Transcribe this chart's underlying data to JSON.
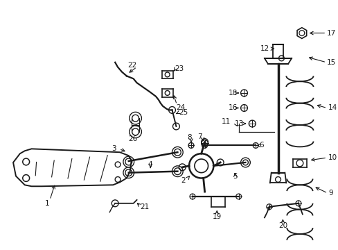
{
  "bg_color": "#ffffff",
  "line_color": "#1a1a1a",
  "label_color": "#111111",
  "figsize": [
    4.89,
    3.6
  ],
  "dpi": 100,
  "label_fontsize": 7.5
}
